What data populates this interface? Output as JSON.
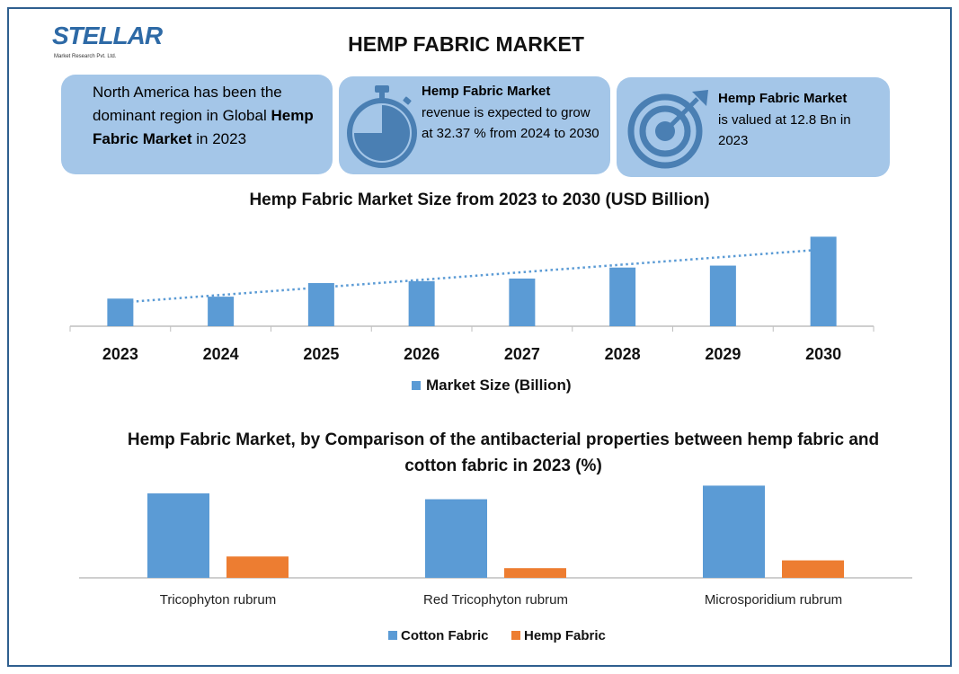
{
  "brand": {
    "logo_text": "STELLAR",
    "logo_sub": "Market Research Pvt. Ltd."
  },
  "title": "HEMP FABRIC MARKET",
  "cards": {
    "card1": {
      "part1": "North America has been the dominant region in Global ",
      "bold": "Hemp Fabric Market",
      "part2": " in 2023"
    },
    "card2": {
      "bold": "Hemp Fabric Market",
      "text": "revenue is expected to grow at 32.37 % from 2024 to 2030",
      "icon": "stopwatch-icon"
    },
    "card3": {
      "bold": "Hemp Fabric Market",
      "text": "is valued at 12.8 Bn in 2023",
      "icon": "target-icon"
    }
  },
  "colors": {
    "card_bg": "#a4c6e8",
    "blue": "#5b9bd5",
    "orange": "#ed7d31",
    "icon": "#4a7fb3"
  },
  "chart_data": [
    {
      "type": "bar",
      "title": "Hemp Fabric Market Size from 2023 to 2030 (USD Billion)",
      "categories": [
        "2023",
        "2024",
        "2025",
        "2026",
        "2027",
        "2028",
        "2029",
        "2030"
      ],
      "series": [
        {
          "name": "Market Size (Billion)",
          "values": [
            12.8,
            13.7,
            20.0,
            20.9,
            22.1,
            27.2,
            28.1,
            41.5
          ],
          "color": "#5b9bd5"
        }
      ],
      "trendline": "linear dotted",
      "ylim": [
        0,
        45
      ],
      "legend": "bottom"
    },
    {
      "type": "bar",
      "title": "Hemp Fabric Market, by Comparison of the antibacterial properties between hemp fabric and cotton fabric in 2023 (%)",
      "categories": [
        "Tricophyton rubrum",
        "Red Tricophyton rubrum",
        "Microsporidium rubrum"
      ],
      "series": [
        {
          "name": "Cotton Fabric",
          "values": [
            87,
            81,
            95
          ],
          "color": "#5b9bd5"
        },
        {
          "name": "Hemp Fabric",
          "values": [
            22,
            10,
            18
          ],
          "color": "#ed7d31"
        }
      ],
      "ylim": [
        0,
        100
      ],
      "legend": "bottom"
    }
  ]
}
